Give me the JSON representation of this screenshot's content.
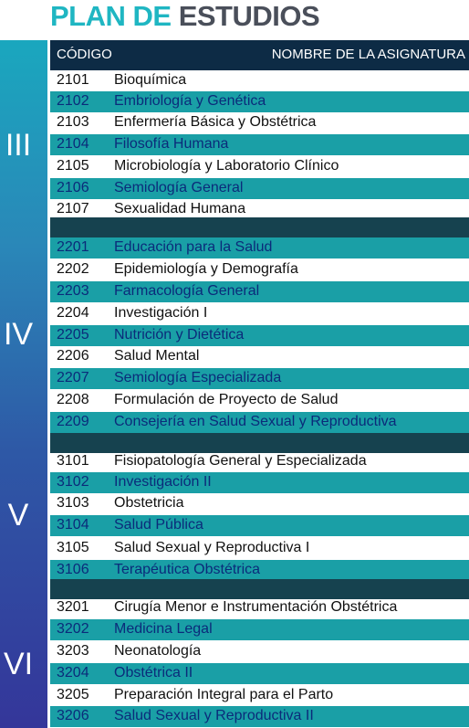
{
  "title": {
    "part1": "PLAN DE",
    "part2": "ESTUDIOS"
  },
  "header": {
    "code": "CÓDIGO",
    "name": "NOMBRE DE LA ASIGNATURA"
  },
  "semesters": [
    "III",
    "IV",
    "V",
    "VI"
  ],
  "rows": [
    {
      "code": "2101",
      "name": "Bioquímica"
    },
    {
      "code": "2102",
      "name": "Embriología y Genética"
    },
    {
      "code": "2103",
      "name": "Enfermería Básica y Obstétrica"
    },
    {
      "code": "2104",
      "name": "Filosofía Humana"
    },
    {
      "code": "2105",
      "name": "Microbiología y Laboratorio Clínico"
    },
    {
      "code": "2106",
      "name": "Semiología General"
    },
    {
      "code": "2107",
      "name": "Sexualidad Humana"
    },
    {
      "code": "2201",
      "name": "Educación para la Salud"
    },
    {
      "code": "2202",
      "name": "Epidemiología y Demografía"
    },
    {
      "code": "2203",
      "name": "Farmacología General"
    },
    {
      "code": "2204",
      "name": "Investigación I"
    },
    {
      "code": "2205",
      "name": "Nutrición y Dietética"
    },
    {
      "code": "2206",
      "name": "Salud Mental"
    },
    {
      "code": "2207",
      "name": "Semiología Especializada"
    },
    {
      "code": "2208",
      "name": "Formulación de Proyecto de Salud"
    },
    {
      "code": "2209",
      "name": "Consejería en Salud Sexual y Reproductiva"
    },
    {
      "code": "3101",
      "name": "Fisiopatología General y Especializada"
    },
    {
      "code": "3102",
      "name": "Investigación II"
    },
    {
      "code": "3103",
      "name": "Obstetricia"
    },
    {
      "code": "3104",
      "name": "Salud Pública"
    },
    {
      "code": "3105",
      "name": "Salud Sexual y Reproductiva I"
    },
    {
      "code": "3106",
      "name": "Terapéutica Obstétrica"
    },
    {
      "code": "3201",
      "name": "Cirugía Menor e Instrumentación Obstétrica"
    },
    {
      "code": "3202",
      "name": "Medicina Legal"
    },
    {
      "code": "3203",
      "name": "Neonatología"
    },
    {
      "code": "3204",
      "name": "Obstétrica II"
    },
    {
      "code": "3205",
      "name": "Preparación Integral para el Parto"
    },
    {
      "code": "3206",
      "name": "Salud Sexual y Reproductiva II"
    }
  ],
  "colors": {
    "teal": "#1a9fa6",
    "navy": "#0d2b45",
    "title_teal": "#1fb6c2",
    "title_gray": "#4a4f5a"
  }
}
